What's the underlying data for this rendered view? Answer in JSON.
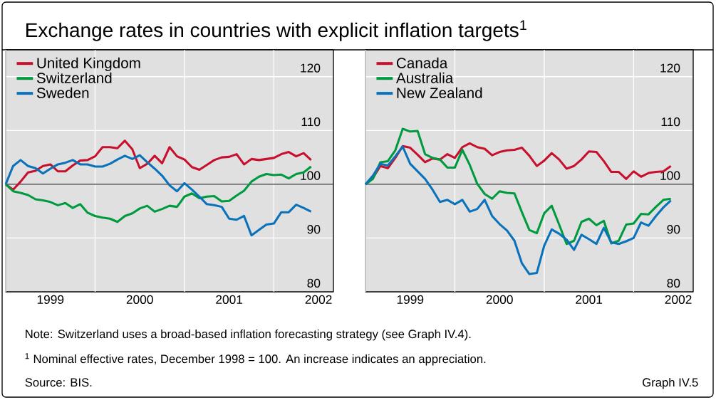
{
  "chart_data": [
    {
      "type": "line",
      "title": "Exchange rates in countries with explicit inflation targets$^{1}$",
      "x": [
        "1998-12",
        "1999-01",
        "1999-02",
        "1999-03",
        "1999-04",
        "1999-05",
        "1999-06",
        "1999-07",
        "1999-08",
        "1999-09",
        "1999-10",
        "1999-11",
        "1999-12",
        "2000-01",
        "2000-02",
        "2000-03",
        "2000-04",
        "2000-05",
        "2000-06",
        "2000-07",
        "2000-08",
        "2000-09",
        "2000-10",
        "2000-11",
        "2000-12",
        "2001-01",
        "2001-02",
        "2001-03",
        "2001-04",
        "2001-05",
        "2001-06",
        "2001-07",
        "2001-08",
        "2001-09",
        "2001-10",
        "2001-11",
        "2001-12",
        "2002-01",
        "2002-02",
        "2002-03",
        "2002-04",
        "2002-05"
      ],
      "series": [
        {
          "name": "United Kingdom",
          "color": "#c8102e",
          "values": [
            100,
            99.0,
            100.5,
            102.2,
            102.5,
            103.4,
            103.7,
            102.4,
            102.4,
            103.5,
            104.4,
            104.5,
            105.2,
            106.9,
            106.9,
            106.7,
            108.1,
            106.5,
            103.0,
            103.8,
            105.3,
            103.9,
            106.9,
            105.2,
            104.6,
            103.2,
            102.7,
            103.6,
            104.5,
            105.0,
            105.1,
            105.6,
            103.7,
            104.7,
            104.5,
            104.7,
            104.9,
            105.6,
            106.0,
            105.2,
            105.8,
            104.5
          ]
        },
        {
          "name": "Switzerland",
          "color": "#009a3e",
          "values": [
            100,
            98.7,
            98.4,
            98.0,
            97.2,
            97.0,
            96.7,
            96.1,
            96.5,
            95.6,
            96.3,
            94.7,
            94.1,
            93.8,
            93.6,
            93.0,
            94.1,
            94.6,
            95.5,
            96.0,
            94.9,
            95.4,
            96.0,
            95.8,
            97.7,
            98.3,
            97.4,
            97.7,
            97.8,
            96.8,
            96.9,
            97.9,
            98.8,
            100.5,
            101.4,
            101.9,
            101.7,
            101.8,
            101.1,
            101.9,
            102.2,
            103.3
          ]
        },
        {
          "name": "Sweden",
          "color": "#0a72ba",
          "values": [
            100,
            103.4,
            104.5,
            103.4,
            103.0,
            102.0,
            102.9,
            103.7,
            104.0,
            104.5,
            103.7,
            103.7,
            103.3,
            103.3,
            103.8,
            104.6,
            105.3,
            104.7,
            105.4,
            104.1,
            102.9,
            101.6,
            99.8,
            98.7,
            100.2,
            99.0,
            97.7,
            96.3,
            96.1,
            95.8,
            93.6,
            93.4,
            94.1,
            90.5,
            91.5,
            92.5,
            92.7,
            94.8,
            94.8,
            96.2,
            95.6,
            94.9
          ]
        }
      ],
      "xlim": [
        "1998-12",
        "2002-08"
      ],
      "xticks": [
        {
          "value": "1998-12",
          "label": null
        },
        {
          "value": "1999-06",
          "label": "1999"
        },
        {
          "value": "1999-12",
          "label": null
        },
        {
          "value": "2000-06",
          "label": "2000"
        },
        {
          "value": "2000-12",
          "label": null
        },
        {
          "value": "2001-06",
          "label": "2001"
        },
        {
          "value": "2001-12",
          "label": null
        },
        {
          "value": "2002-06",
          "label": "2002"
        }
      ],
      "ylim": [
        80,
        125
      ],
      "yticks": [
        80,
        90,
        100,
        110,
        120
      ],
      "grid": true,
      "legend": "top left",
      "line_style": "solid",
      "ref_lines": [
        {
          "axis": "y",
          "value": 100,
          "color": "#333333"
        }
      ],
      "annotations": [
        "Note: Switzerland uses a broad-based inflation forecasting strategy (see Graph IV.4).",
        "$^{1}$ Nominal effective rates, December 1998 = 100. An increase indicates an appreciation.",
        "Source: BIS.",
        "Graph IV.5"
      ]
    },
    {
      "type": "line",
      "x": [
        "1998-12",
        "1999-01",
        "1999-02",
        "1999-03",
        "1999-04",
        "1999-05",
        "1999-06",
        "1999-07",
        "1999-08",
        "1999-09",
        "1999-10",
        "1999-11",
        "1999-12",
        "2000-01",
        "2000-02",
        "2000-03",
        "2000-04",
        "2000-05",
        "2000-06",
        "2000-07",
        "2000-08",
        "2000-09",
        "2000-10",
        "2000-11",
        "2000-12",
        "2001-01",
        "2001-02",
        "2001-03",
        "2001-04",
        "2001-05",
        "2001-06",
        "2001-07",
        "2001-08",
        "2001-09",
        "2001-10",
        "2001-11",
        "2001-12",
        "2002-01",
        "2002-02",
        "2002-03",
        "2002-04",
        "2002-05"
      ],
      "series": [
        {
          "name": "Canada",
          "color": "#c8102e",
          "values": [
            100,
            101.2,
            103.4,
            103.0,
            104.9,
            107.1,
            106.8,
            105.5,
            104.1,
            104.8,
            104.6,
            105.6,
            104.9,
            106.9,
            107.6,
            106.9,
            106.6,
            105.4,
            106.0,
            106.3,
            106.4,
            106.8,
            105.3,
            103.4,
            104.4,
            105.8,
            104.6,
            102.9,
            103.4,
            104.6,
            106.1,
            106.0,
            104.3,
            102.3,
            102.3,
            101.0,
            102.4,
            101.4,
            102.1,
            102.3,
            102.4,
            103.4
          ]
        },
        {
          "name": "Australia",
          "color": "#009a3e",
          "values": [
            100,
            101.0,
            104.1,
            104.3,
            106.3,
            110.3,
            109.8,
            109.9,
            105.6,
            104.9,
            104.6,
            103.1,
            103.1,
            106.4,
            103.6,
            100.1,
            98.2,
            97.3,
            98.7,
            98.4,
            98.3,
            94.8,
            91.5,
            90.9,
            94.6,
            96.0,
            92.5,
            88.9,
            89.5,
            93.0,
            93.6,
            92.4,
            93.2,
            89.0,
            89.5,
            92.5,
            92.7,
            94.5,
            94.4,
            95.8,
            97.1,
            97.3
          ]
        },
        {
          "name": "New Zealand",
          "color": "#0a72ba",
          "values": [
            100,
            101.6,
            103.8,
            103.5,
            105.2,
            107.0,
            103.8,
            102.4,
            101.0,
            99.0,
            96.7,
            97.1,
            96.3,
            97.1,
            94.9,
            95.4,
            97.1,
            94.1,
            92.6,
            91.4,
            89.5,
            85.3,
            83.3,
            83.5,
            88.6,
            91.6,
            90.8,
            89.7,
            87.8,
            90.6,
            89.8,
            88.9,
            91.9,
            89.2,
            88.9,
            89.4,
            90.0,
            92.9,
            92.3,
            94.1,
            95.7,
            97.0
          ]
        }
      ],
      "xlim": [
        "1998-12",
        "2002-08"
      ],
      "xticks": [
        {
          "value": "1998-12",
          "label": null
        },
        {
          "value": "1999-06",
          "label": "1999"
        },
        {
          "value": "1999-12",
          "label": null
        },
        {
          "value": "2000-06",
          "label": "2000"
        },
        {
          "value": "2000-12",
          "label": null
        },
        {
          "value": "2001-06",
          "label": "2001"
        },
        {
          "value": "2001-12",
          "label": null
        },
        {
          "value": "2002-06",
          "label": "2002"
        }
      ],
      "ylim": [
        80,
        125
      ],
      "yticks": [
        80,
        90,
        100,
        110,
        120
      ],
      "grid": true,
      "legend": "top left",
      "line_style": "solid",
      "ref_lines": [
        {
          "axis": "y",
          "value": 100,
          "color": "#333333"
        }
      ]
    }
  ]
}
